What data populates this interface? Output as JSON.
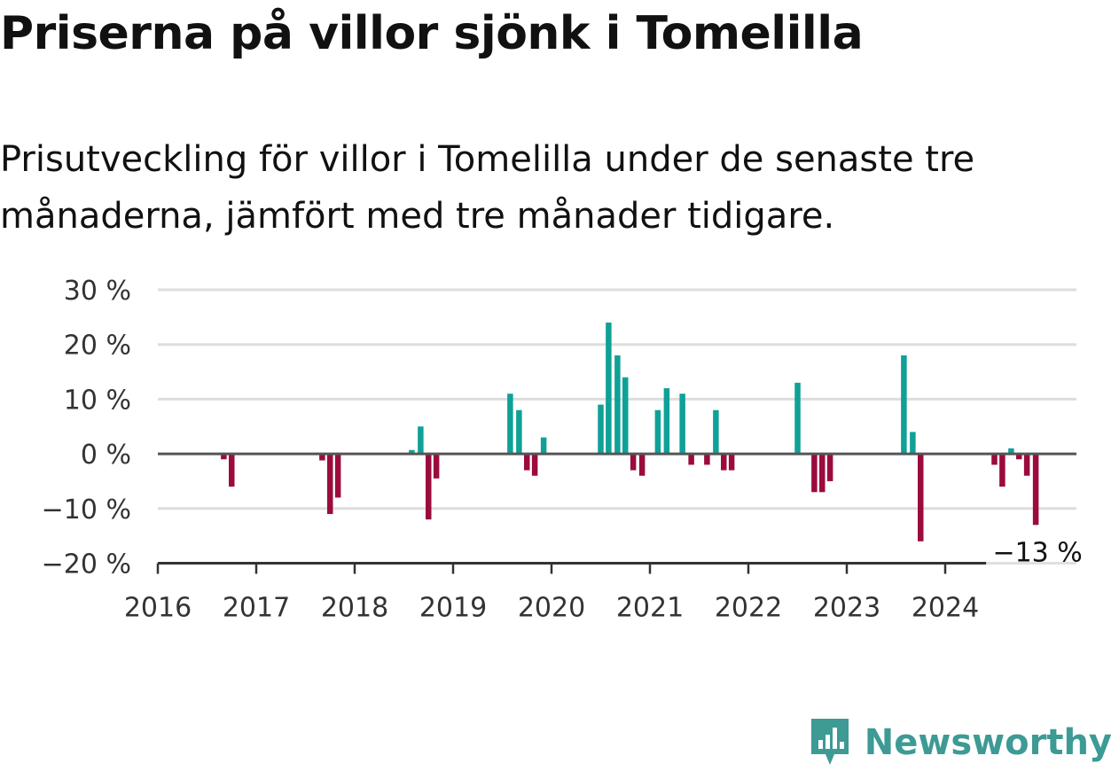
{
  "title": "Priserna på villor sjönk i Tomelilla",
  "subtitle": "Prisutveckling för villor i Tomelilla under de senaste tre månaderna, jämfört med tre månader tidigare.",
  "brand": {
    "name": "Newsworthy",
    "logo_icon": "bar-chart-speech-bubble-icon",
    "color": "#3d9a95"
  },
  "colors": {
    "positive": "#0fa197",
    "negative": "#9b0b3e",
    "grid": "#dddddd",
    "axis": "#333333"
  },
  "chart_data": {
    "type": "bar",
    "title": "Priserna på villor sjönk i Tomelilla",
    "subtitle": "Prisutveckling för villor i Tomelilla under de senaste tre månaderna, jämfört med tre månader tidigare.",
    "xlabel": "",
    "ylabel": "",
    "x_ticks": [
      "2016",
      "2017",
      "2018",
      "2019",
      "2020",
      "2021",
      "2022",
      "2023",
      "2024"
    ],
    "y_ticks": [
      {
        "value": 30,
        "label": "30 %"
      },
      {
        "value": 20,
        "label": "20 %"
      },
      {
        "value": 10,
        "label": "10 %"
      },
      {
        "value": 0,
        "label": "0 %"
      },
      {
        "value": -10,
        "label": "−10 %"
      },
      {
        "value": -20,
        "label": "−20 %"
      }
    ],
    "xlim": [
      2016,
      2025.0
    ],
    "ylim": [
      -20,
      30
    ],
    "grid": true,
    "unit": "%",
    "series": [
      {
        "points": [
          {
            "x": 2016.67,
            "y": -1
          },
          {
            "x": 2016.75,
            "y": -6
          },
          {
            "x": 2017.67,
            "y": -1.2
          },
          {
            "x": 2017.75,
            "y": -11
          },
          {
            "x": 2017.83,
            "y": -8
          },
          {
            "x": 2018.58,
            "y": 0.7
          },
          {
            "x": 2018.67,
            "y": 5
          },
          {
            "x": 2018.75,
            "y": -12
          },
          {
            "x": 2018.83,
            "y": -4.5
          },
          {
            "x": 2019.58,
            "y": 11
          },
          {
            "x": 2019.67,
            "y": 8
          },
          {
            "x": 2019.75,
            "y": -3
          },
          {
            "x": 2019.83,
            "y": -4
          },
          {
            "x": 2019.92,
            "y": 3
          },
          {
            "x": 2020.5,
            "y": 9
          },
          {
            "x": 2020.58,
            "y": 24
          },
          {
            "x": 2020.67,
            "y": 18
          },
          {
            "x": 2020.75,
            "y": 14
          },
          {
            "x": 2020.83,
            "y": -3
          },
          {
            "x": 2020.92,
            "y": -4
          },
          {
            "x": 2021.08,
            "y": 8
          },
          {
            "x": 2021.17,
            "y": 12
          },
          {
            "x": 2021.33,
            "y": 11
          },
          {
            "x": 2021.42,
            "y": -2
          },
          {
            "x": 2021.58,
            "y": -2
          },
          {
            "x": 2021.67,
            "y": 8
          },
          {
            "x": 2021.75,
            "y": -3
          },
          {
            "x": 2021.83,
            "y": -3
          },
          {
            "x": 2022.5,
            "y": 13
          },
          {
            "x": 2022.67,
            "y": -7
          },
          {
            "x": 2022.75,
            "y": -7
          },
          {
            "x": 2022.83,
            "y": -5
          },
          {
            "x": 2023.58,
            "y": 18
          },
          {
            "x": 2023.67,
            "y": 4
          },
          {
            "x": 2023.75,
            "y": -16
          },
          {
            "x": 2024.5,
            "y": -2
          },
          {
            "x": 2024.58,
            "y": -6
          },
          {
            "x": 2024.67,
            "y": 1
          },
          {
            "x": 2024.75,
            "y": -1
          },
          {
            "x": 2024.83,
            "y": -4
          },
          {
            "x": 2024.92,
            "y": -13
          }
        ]
      }
    ],
    "annotations": [
      {
        "x": 2024.92,
        "y": -13,
        "text": "−13 %"
      }
    ]
  }
}
